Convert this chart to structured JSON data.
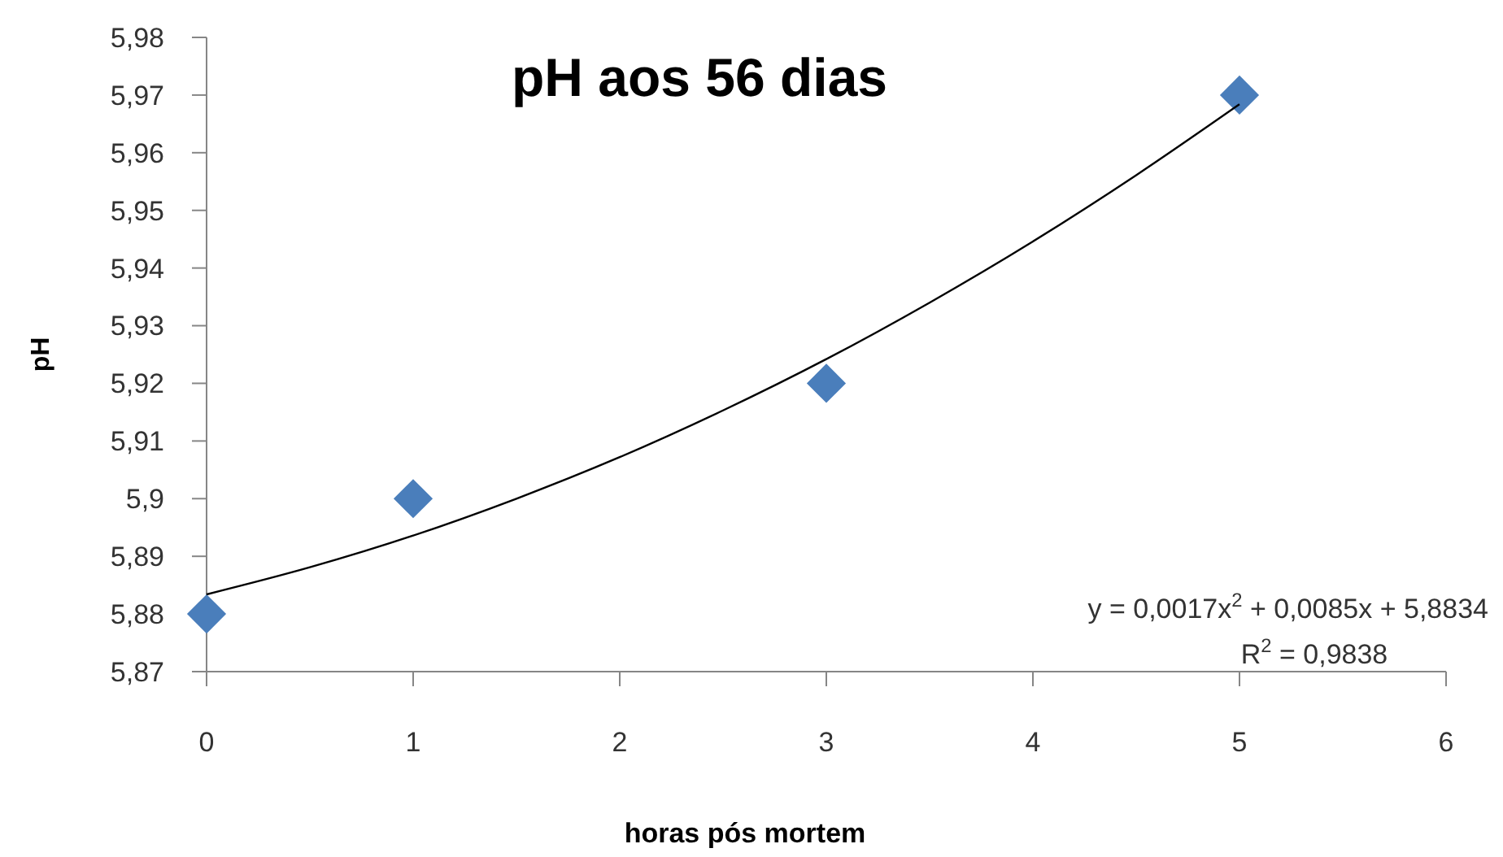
{
  "chart_data": {
    "type": "scatter",
    "title": "pH aos 56 dias",
    "xlabel": "horas pós mortem",
    "ylabel": "pH",
    "xlim": [
      0,
      6
    ],
    "xticks": [
      0,
      1,
      2,
      3,
      4,
      5,
      6
    ],
    "ylim": [
      5.87,
      5.98
    ],
    "yticks": [
      {
        "value": 5.87,
        "label": "5,87"
      },
      {
        "value": 5.88,
        "label": "5,88"
      },
      {
        "value": 5.89,
        "label": "5,89"
      },
      {
        "value": 5.9,
        "label": "5,9"
      },
      {
        "value": 5.91,
        "label": "5,91"
      },
      {
        "value": 5.92,
        "label": "5,92"
      },
      {
        "value": 5.93,
        "label": "5,93"
      },
      {
        "value": 5.94,
        "label": "5,94"
      },
      {
        "value": 5.95,
        "label": "5,95"
      },
      {
        "value": 5.96,
        "label": "5,96"
      },
      {
        "value": 5.97,
        "label": "5,97"
      },
      {
        "value": 5.98,
        "label": "5,98"
      }
    ],
    "marker": "diamond",
    "series": [
      {
        "color": "#4a7ebb",
        "x": [
          0,
          1,
          3,
          5
        ],
        "values": [
          5.88,
          5.9,
          5.92,
          5.97
        ]
      },
      {
        "type": "line",
        "color": "#000000",
        "marker": "none",
        "x": [
          0,
          0.5,
          1,
          1.5,
          2,
          2.5,
          3,
          3.5,
          4,
          4.5,
          5
        ],
        "values": [
          5.8834,
          5.8881,
          5.8936,
          5.9,
          5.9072,
          5.9153,
          5.9242,
          5.934,
          5.9446,
          5.9561,
          5.9684
        ]
      }
    ],
    "annotations": [
      "y = 0,0017x$^{2}$ + 0,0085x + 5,8834",
      "R$^{2}$ = 0,9838"
    ]
  }
}
